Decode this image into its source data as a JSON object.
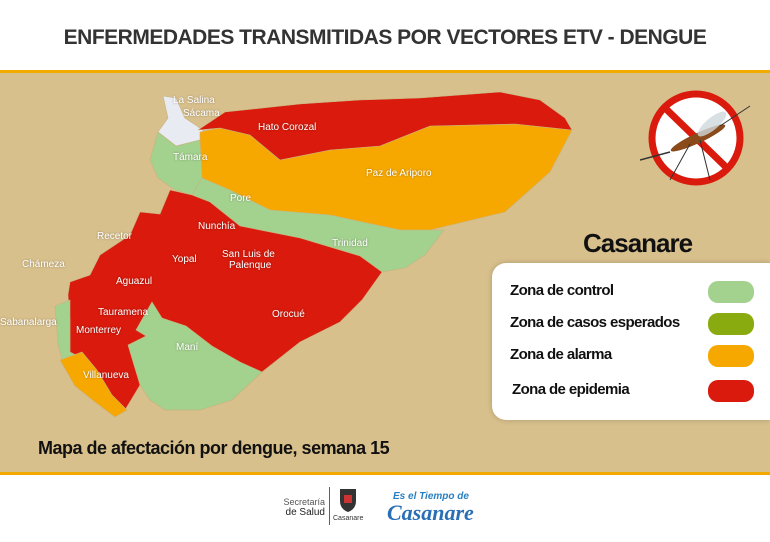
{
  "header": {
    "title": "ENFERMEDADES TRANSMITIDAS POR VECTORES ETV - DENGUE"
  },
  "map": {
    "region": "Casanare",
    "caption": "Mapa de afectación por dengue, semana 15",
    "municipalities": [
      {
        "name": "La Salina",
        "zone": "none"
      },
      {
        "name": "Sácama",
        "zone": "none"
      },
      {
        "name": "Hato Corozal",
        "zone": "epidemia"
      },
      {
        "name": "Paz de Ariporo",
        "zone": "alarma"
      },
      {
        "name": "Támara",
        "zone": "control"
      },
      {
        "name": "Pore",
        "zone": "control"
      },
      {
        "name": "Trinidad",
        "zone": "control"
      },
      {
        "name": "Nunchía",
        "zone": "epidemia"
      },
      {
        "name": "Recetor",
        "zone": "none"
      },
      {
        "name": "Chámeza",
        "zone": "none"
      },
      {
        "name": "Yopal",
        "zone": "epidemia"
      },
      {
        "name": "San Luis de Palenque",
        "zone": "epidemia"
      },
      {
        "name": "Aguazul",
        "zone": "epidemia"
      },
      {
        "name": "Tauramena",
        "zone": "epidemia"
      },
      {
        "name": "Orocué",
        "zone": "epidemia"
      },
      {
        "name": "Sabanalarga",
        "zone": "control"
      },
      {
        "name": "Monterrey",
        "zone": "epidemia"
      },
      {
        "name": "Maní",
        "zone": "control"
      },
      {
        "name": "Villanueva",
        "zone": "alarma"
      }
    ],
    "labels": {
      "la_salina": "La Salina",
      "sacama": "Sácama",
      "hato_corozal": "Hato Corozal",
      "paz_de_ariporo": "Paz de Ariporo",
      "tamara": "Támara",
      "pore": "Pore",
      "trinidad": "Trinidad",
      "nunchia": "Nunchía",
      "recetor": "Recetor",
      "chameza": "Chámeza",
      "yopal": "Yopal",
      "san_luis_1": "San Luis de",
      "san_luis_2": "Palenque",
      "aguazul": "Aguazul",
      "tauramena": "Tauramena",
      "orocue": "Orocué",
      "sabanalarga": "Sabanalarga",
      "monterrey": "Monterrey",
      "mani": "Maní",
      "villanueva": "Villanueva"
    }
  },
  "legend": {
    "title": "Casanare",
    "items": [
      {
        "label": "Zona de control",
        "color": "#a3d18e"
      },
      {
        "label": "Zona de casos esperados",
        "color": "#8aab10"
      },
      {
        "label": "Zona de alarma",
        "color": "#f7a800"
      },
      {
        "label": "Zona de epidemia",
        "color": "#d91a0c"
      }
    ]
  },
  "colors": {
    "accent": "#f2a900",
    "background": "#d8c08c",
    "none": "#e8ecf2"
  },
  "icons": {
    "mosquito": "no-mosquito-icon"
  },
  "footer": {
    "logo1_line1": "Secretaría",
    "logo1_line2": "de Salud",
    "logo2": "Casanare",
    "logo3": "Es el Tiempo de Casanare"
  }
}
